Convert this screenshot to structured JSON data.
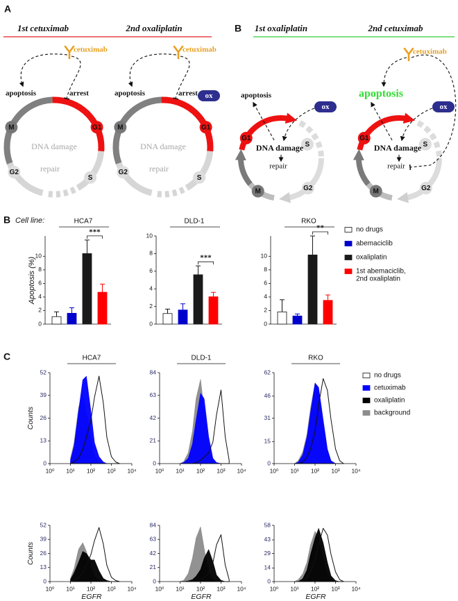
{
  "panel_a": {
    "label": "A",
    "sub_label": "B",
    "groups": [
      {
        "headers": [
          "1st cetuximab",
          "2nd oxaliplatin"
        ],
        "color": "#e02020"
      },
      {
        "headers": [
          "1st oxaliplatin",
          "2nd cetuximab"
        ],
        "color": "#33cc33"
      }
    ],
    "diagrams": [
      {
        "cetuximab": "cetuximab",
        "apoptosis": "apoptosis",
        "arrest": "arrest",
        "phases": [
          "M",
          "G1",
          "G2",
          "S"
        ],
        "damage": "DNA damage",
        "repair": "repair"
      },
      {
        "cetuximab": "cetuximab",
        "apoptosis": "apoptosis",
        "arrest": "arrest",
        "ox": "ox",
        "phases": [
          "M",
          "G1",
          "G2",
          "S"
        ],
        "damage": "DNA damage",
        "repair": "repair"
      },
      {
        "apoptosis": "apoptosis",
        "ox": "ox",
        "phases": [
          "G1",
          "S",
          "M",
          "G2"
        ],
        "damage": "DNA damage",
        "repair": "repair"
      },
      {
        "cetuximab": "cetuximab",
        "apoptosis": "apoptosis",
        "ox": "ox",
        "phases": [
          "G1",
          "S",
          "M",
          "G2"
        ],
        "damage": "DNA damage",
        "repair": "repair"
      }
    ]
  },
  "panel_b": {
    "label": "B",
    "cell_line_label": "Cell line:",
    "ylabel": "Apoptosis (%)",
    "legend": [
      {
        "name": "no drugs",
        "color": "#ffffff"
      },
      {
        "name": "abemaciclib",
        "color": "#0000cc"
      },
      {
        "name": "oxaliplatin",
        "color": "#1a1a1a"
      },
      {
        "lines": [
          "1st abemaciclib,",
          "2nd oxaliplatin"
        ],
        "color": "#ff0000"
      }
    ]
  },
  "panel_c": {
    "label": "C",
    "ylabel": "Counts",
    "xlabel": "EGFR",
    "legend": [
      {
        "name": "no drugs",
        "color": "#ffffff"
      },
      {
        "name": "cetuximab",
        "color": "#0000ff"
      },
      {
        "name": "oxaliplatin",
        "color": "#000000"
      },
      {
        "name": "background",
        "color": "#8c8c8c"
      }
    ]
  },
  "chart_data": [
    {
      "type": "bar",
      "title": "HCA7",
      "values": [
        1.1,
        1.6,
        10.4,
        4.7
      ],
      "errors": [
        0.7,
        0.8,
        2.0,
        1.2
      ],
      "ylim": [
        0,
        13
      ],
      "yticks": [
        0,
        2,
        4,
        6,
        8,
        10
      ],
      "significance": "***"
    },
    {
      "type": "bar",
      "title": "DLD-1",
      "values": [
        1.2,
        1.6,
        5.6,
        3.1
      ],
      "errors": [
        0.5,
        0.7,
        1.0,
        0.5
      ],
      "ylim": [
        0,
        10
      ],
      "yticks": [
        0,
        2,
        4,
        6,
        8,
        10
      ],
      "significance": "***"
    },
    {
      "type": "bar",
      "title": "RKO",
      "values": [
        1.8,
        1.2,
        10.2,
        3.5
      ],
      "errors": [
        1.8,
        0.3,
        2.8,
        0.8
      ],
      "ylim": [
        0,
        13
      ],
      "yticks": [
        0,
        2,
        4,
        6,
        8,
        10
      ],
      "significance": "**"
    },
    {
      "type": "area",
      "title": "HCA7",
      "xscale": "log",
      "x": [
        10,
        15,
        25,
        40,
        60,
        100,
        150,
        250,
        400,
        600,
        1000,
        1600,
        2500
      ],
      "xlim": [
        1,
        10000
      ],
      "xticks": [
        {
          "value": 1,
          "label": "10⁰"
        },
        {
          "value": 10,
          "label": "10¹"
        },
        {
          "value": 100,
          "label": "10²"
        },
        {
          "value": 1000,
          "label": "10³"
        },
        {
          "value": 10000,
          "label": "10⁴"
        }
      ],
      "ylim": [
        0,
        52
      ],
      "yticks": [
        0,
        13,
        26,
        39,
        52
      ],
      "series": [
        {
          "color": "#8c8c8c",
          "values": [
            3,
            12,
            32,
            40,
            30,
            15,
            5,
            1,
            0,
            0,
            0,
            0,
            0
          ]
        },
        {
          "color": "#0000ff",
          "values": [
            2,
            10,
            30,
            48,
            50,
            30,
            12,
            4,
            1,
            0,
            0,
            0,
            0
          ]
        },
        {
          "color": "#ffffff",
          "values": [
            0,
            1,
            3,
            8,
            15,
            25,
            38,
            50,
            35,
            15,
            4,
            1,
            0
          ]
        }
      ]
    },
    {
      "type": "area",
      "title": "DLD-1",
      "xscale": "log",
      "x": [
        10,
        15,
        25,
        40,
        60,
        100,
        150,
        250,
        400,
        600,
        1000,
        1600,
        2500
      ],
      "xlim": [
        1,
        10000
      ],
      "xticks": [
        {
          "value": 1,
          "label": "10⁰"
        },
        {
          "value": 10,
          "label": "10¹"
        },
        {
          "value": 100,
          "label": "10²"
        },
        {
          "value": 1000,
          "label": "10³"
        },
        {
          "value": 10000,
          "label": "10⁴"
        }
      ],
      "ylim": [
        0,
        84
      ],
      "yticks": [
        0,
        21,
        42,
        63,
        84
      ],
      "series": [
        {
          "color": "#8c8c8c",
          "values": [
            0,
            2,
            10,
            30,
            60,
            78,
            50,
            15,
            3,
            0,
            0,
            0,
            0
          ]
        },
        {
          "color": "#0000ff",
          "values": [
            0,
            1,
            5,
            18,
            40,
            65,
            60,
            25,
            5,
            1,
            0,
            0,
            0
          ]
        },
        {
          "color": "#ffffff",
          "values": [
            0,
            0,
            0,
            0,
            1,
            3,
            6,
            10,
            20,
            45,
            68,
            25,
            3
          ]
        }
      ]
    },
    {
      "type": "area",
      "title": "RKO",
      "xscale": "log",
      "x": [
        10,
        15,
        25,
        40,
        60,
        100,
        150,
        250,
        400,
        600,
        1000,
        1600,
        2500
      ],
      "xlim": [
        1,
        10000
      ],
      "xticks": [
        {
          "value": 1,
          "label": "10⁰"
        },
        {
          "value": 10,
          "label": "10¹"
        },
        {
          "value": 100,
          "label": "10²"
        },
        {
          "value": 1000,
          "label": "10³"
        },
        {
          "value": 10000,
          "label": "10⁴"
        }
      ],
      "ylim": [
        0,
        62
      ],
      "yticks": [
        0,
        15,
        31,
        46,
        62
      ],
      "series": [
        {
          "color": "#8c8c8c",
          "values": [
            0,
            2,
            8,
            20,
            38,
            55,
            50,
            25,
            8,
            2,
            0,
            0,
            0
          ]
        },
        {
          "color": "#0000ff",
          "values": [
            0,
            1,
            6,
            18,
            35,
            55,
            52,
            30,
            10,
            2,
            0,
            0,
            0
          ]
        },
        {
          "color": "#ffffff",
          "values": [
            0,
            0,
            1,
            4,
            10,
            22,
            40,
            58,
            50,
            30,
            10,
            2,
            0
          ]
        }
      ]
    },
    {
      "type": "area",
      "xscale": "log",
      "x": [
        10,
        15,
        25,
        40,
        60,
        100,
        150,
        250,
        400,
        600,
        1000,
        1600,
        2500
      ],
      "xlim": [
        1,
        10000
      ],
      "xticks": [
        {
          "value": 1,
          "label": "10⁰"
        },
        {
          "value": 10,
          "label": "10¹"
        },
        {
          "value": 100,
          "label": "10²"
        },
        {
          "value": 1000,
          "label": "10³"
        },
        {
          "value": 10000,
          "label": "10⁴"
        }
      ],
      "ylim": [
        0,
        52
      ],
      "yticks": [
        0,
        13,
        26,
        39,
        52
      ],
      "series": [
        {
          "color": "#8c8c8c",
          "values": [
            3,
            12,
            30,
            36,
            28,
            15,
            5,
            1,
            0,
            0,
            0,
            0,
            0
          ]
        },
        {
          "color": "#000000",
          "values": [
            2,
            8,
            18,
            28,
            26,
            20,
            20,
            10,
            3,
            1,
            0,
            0,
            0
          ]
        },
        {
          "color": "#ffffff",
          "values": [
            0,
            1,
            3,
            8,
            15,
            25,
            38,
            50,
            35,
            15,
            4,
            1,
            0
          ]
        }
      ]
    },
    {
      "type": "area",
      "xscale": "log",
      "x": [
        10,
        15,
        25,
        40,
        60,
        100,
        150,
        250,
        400,
        600,
        1000,
        1600,
        2500
      ],
      "xlim": [
        1,
        10000
      ],
      "xticks": [
        {
          "value": 1,
          "label": "10⁰"
        },
        {
          "value": 10,
          "label": "10¹"
        },
        {
          "value": 100,
          "label": "10²"
        },
        {
          "value": 1000,
          "label": "10³"
        },
        {
          "value": 10000,
          "label": "10⁴"
        }
      ],
      "ylim": [
        0,
        84
      ],
      "yticks": [
        0,
        21,
        42,
        63,
        84
      ],
      "series": [
        {
          "color": "#8c8c8c",
          "values": [
            0,
            2,
            12,
            35,
            65,
            82,
            50,
            15,
            3,
            0,
            0,
            0,
            0
          ]
        },
        {
          "color": "#000000",
          "values": [
            0,
            0,
            1,
            3,
            8,
            18,
            35,
            48,
            30,
            10,
            2,
            0,
            0
          ]
        },
        {
          "color": "#ffffff",
          "values": [
            0,
            0,
            0,
            0,
            1,
            3,
            6,
            12,
            28,
            55,
            70,
            25,
            3
          ]
        }
      ]
    },
    {
      "type": "area",
      "xscale": "log",
      "x": [
        10,
        15,
        25,
        40,
        60,
        100,
        150,
        250,
        400,
        600,
        1000,
        1600,
        2500
      ],
      "xlim": [
        1,
        10000
      ],
      "xticks": [
        {
          "value": 1,
          "label": "10⁰"
        },
        {
          "value": 10,
          "label": "10¹"
        },
        {
          "value": 100,
          "label": "10²"
        },
        {
          "value": 1000,
          "label": "10³"
        },
        {
          "value": 10000,
          "label": "10⁴"
        }
      ],
      "ylim": [
        0,
        58
      ],
      "yticks": [
        0,
        14,
        29,
        43,
        58
      ],
      "series": [
        {
          "color": "#8c8c8c",
          "values": [
            0,
            2,
            8,
            20,
            38,
            52,
            45,
            25,
            8,
            2,
            0,
            0,
            0
          ]
        },
        {
          "color": "#000000",
          "values": [
            0,
            0,
            3,
            12,
            28,
            45,
            55,
            40,
            20,
            6,
            1,
            0,
            0
          ]
        },
        {
          "color": "#ffffff",
          "values": [
            0,
            0,
            1,
            4,
            10,
            22,
            38,
            55,
            48,
            28,
            10,
            2,
            0
          ]
        }
      ]
    }
  ]
}
